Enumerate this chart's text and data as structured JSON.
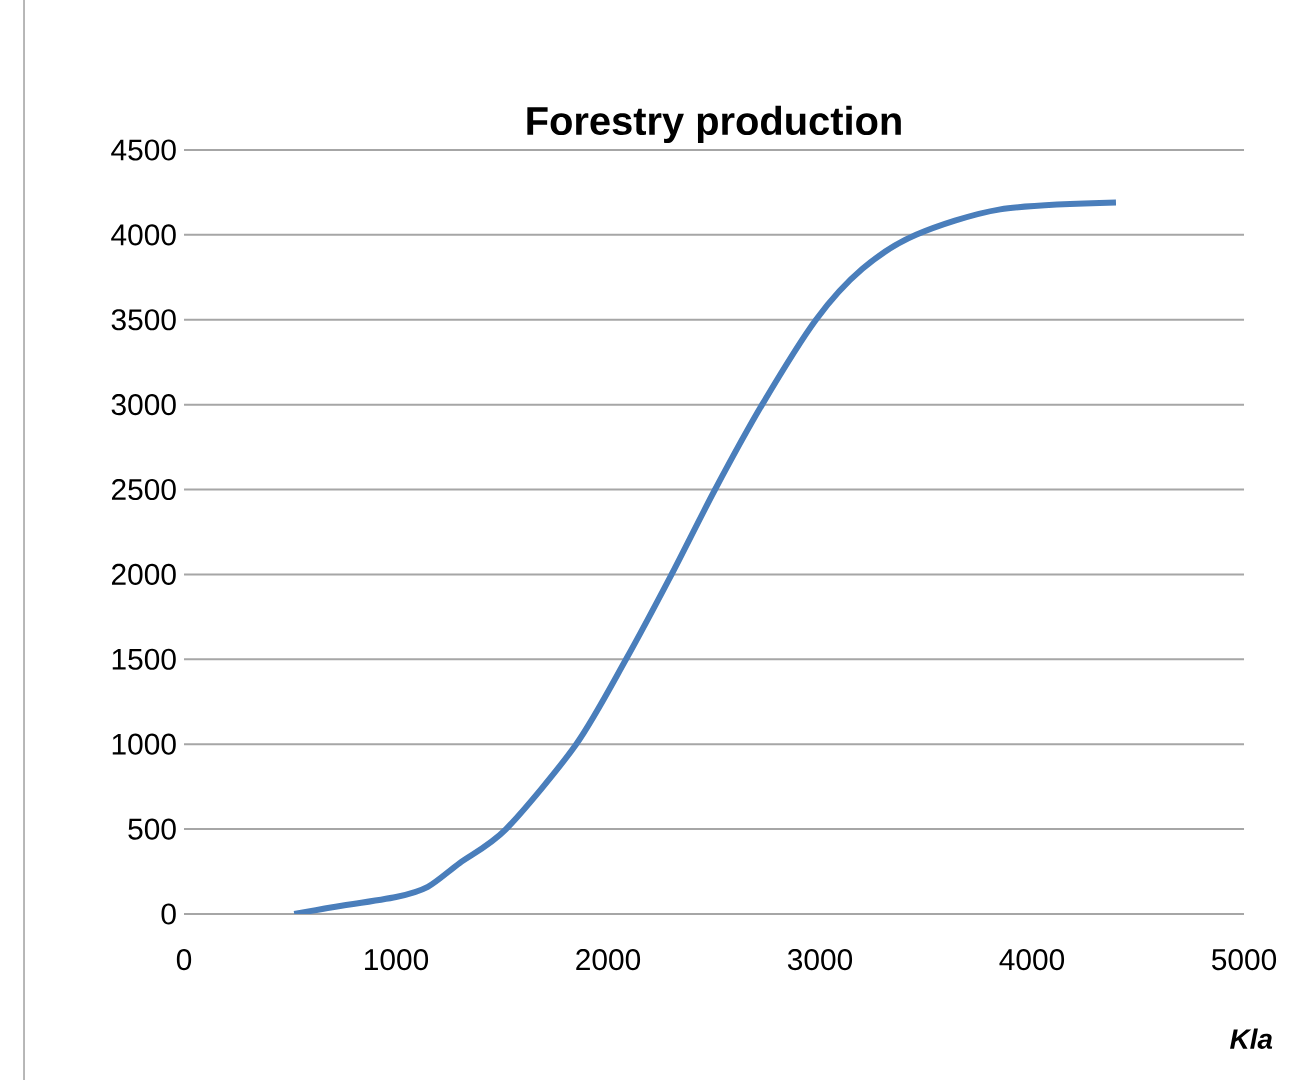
{
  "chart_data": {
    "type": "line",
    "title": "Forestry production",
    "xlabel": "Kla",
    "x": [
      520,
      700,
      1000,
      1150,
      1300,
      1519,
      1850,
      2085,
      2300,
      2505,
      2727,
      2981,
      3200,
      3453,
      3850,
      4396
    ],
    "series": [
      {
        "color": "#4a7ebb",
        "values": [
          0,
          40,
          100,
          160,
          300,
          500,
          1000,
          1500,
          2000,
          2500,
          3000,
          3500,
          3800,
          4000,
          4150,
          4190
        ]
      }
    ],
    "xlim": [
      0,
      5000
    ],
    "xticks": [
      0,
      1000,
      2000,
      3000,
      4000,
      5000
    ],
    "ylim": [
      0,
      4500
    ],
    "yticks": [
      0,
      500,
      1000,
      1500,
      2000,
      2500,
      3000,
      3500,
      4000,
      4500
    ],
    "grid": "y",
    "marker": "none",
    "line_style": "solid"
  }
}
